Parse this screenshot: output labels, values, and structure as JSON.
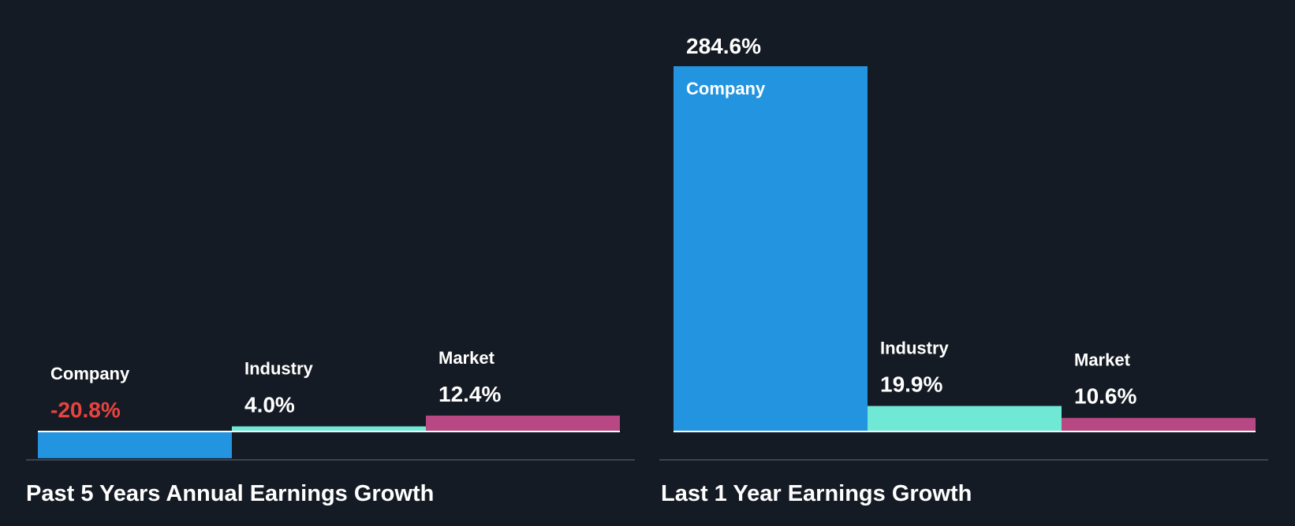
{
  "colors": {
    "background": "#151b24",
    "company": "#2394df",
    "industry": "#6fe8d5",
    "market": "#b84883",
    "negative": "#e84340",
    "baseline": "#ffffff",
    "axis": "#3d4350"
  },
  "chart_data": [
    {
      "type": "bar",
      "title": "Past 5 Years Annual Earnings Growth",
      "categories": [
        "Company",
        "Industry",
        "Market"
      ],
      "values": [
        -20.8,
        4.0,
        12.4
      ],
      "value_labels": [
        "-20.8%",
        "4.0%",
        "12.4%"
      ],
      "unit": "%"
    },
    {
      "type": "bar",
      "title": "Last 1 Year Earnings Growth",
      "categories": [
        "Company",
        "Industry",
        "Market"
      ],
      "values": [
        284.6,
        19.9,
        10.6
      ],
      "value_labels": [
        "284.6%",
        "19.9%",
        "10.6%"
      ],
      "unit": "%"
    }
  ]
}
